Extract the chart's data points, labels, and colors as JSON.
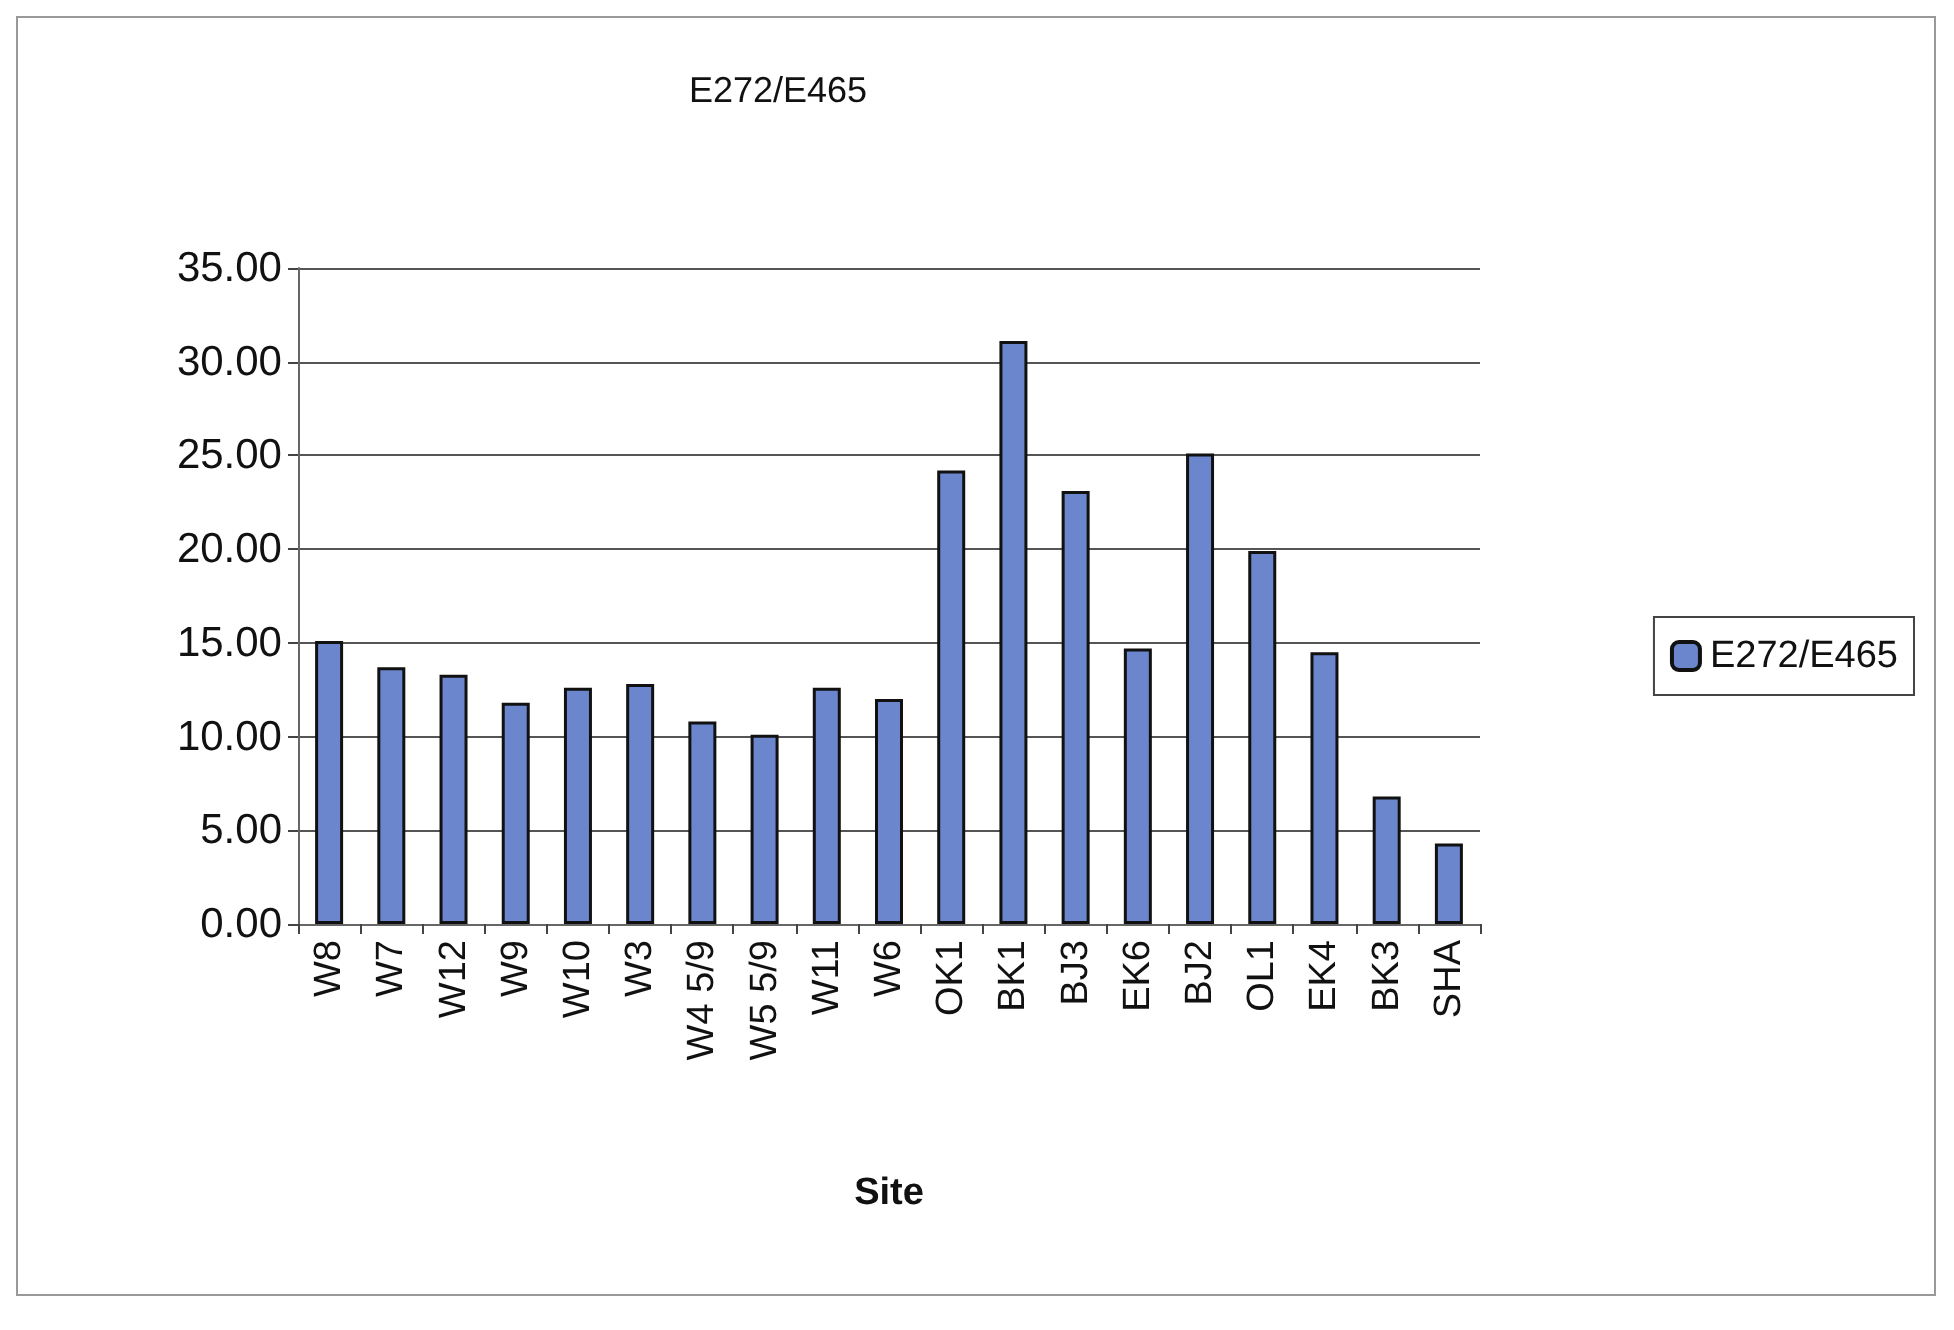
{
  "chart_data": {
    "type": "bar",
    "title": "E272/E465",
    "xlabel": "Site",
    "categories": [
      "W8",
      "W7",
      "W12",
      "W9",
      "W10",
      "W3",
      "W4 5/9",
      "W5 5/9",
      "W11",
      "W6",
      "OK1",
      "BK1",
      "BJ3",
      "EK6",
      "BJ2",
      "OL1",
      "EK4",
      "BK3",
      "SHA"
    ],
    "series": [
      {
        "name": "E272/E465",
        "color": "#6b86cc",
        "values": [
          15.1,
          13.7,
          13.3,
          11.8,
          12.6,
          12.8,
          10.8,
          10.1,
          12.6,
          12.0,
          24.2,
          31.1,
          23.1,
          14.7,
          25.1,
          19.9,
          14.5,
          6.8,
          4.3
        ]
      }
    ],
    "ylim": [
      0,
      35
    ],
    "yticks": [
      {
        "value": 0,
        "label": "0.00"
      },
      {
        "value": 5,
        "label": "5.00"
      },
      {
        "value": 10,
        "label": "10.00"
      },
      {
        "value": 15,
        "label": "15.00"
      },
      {
        "value": 20,
        "label": "20.00"
      },
      {
        "value": 25,
        "label": "25.00"
      },
      {
        "value": 30,
        "label": "30.00"
      },
      {
        "value": 35,
        "label": "35.00"
      }
    ],
    "grid": "y",
    "legend": "right"
  }
}
